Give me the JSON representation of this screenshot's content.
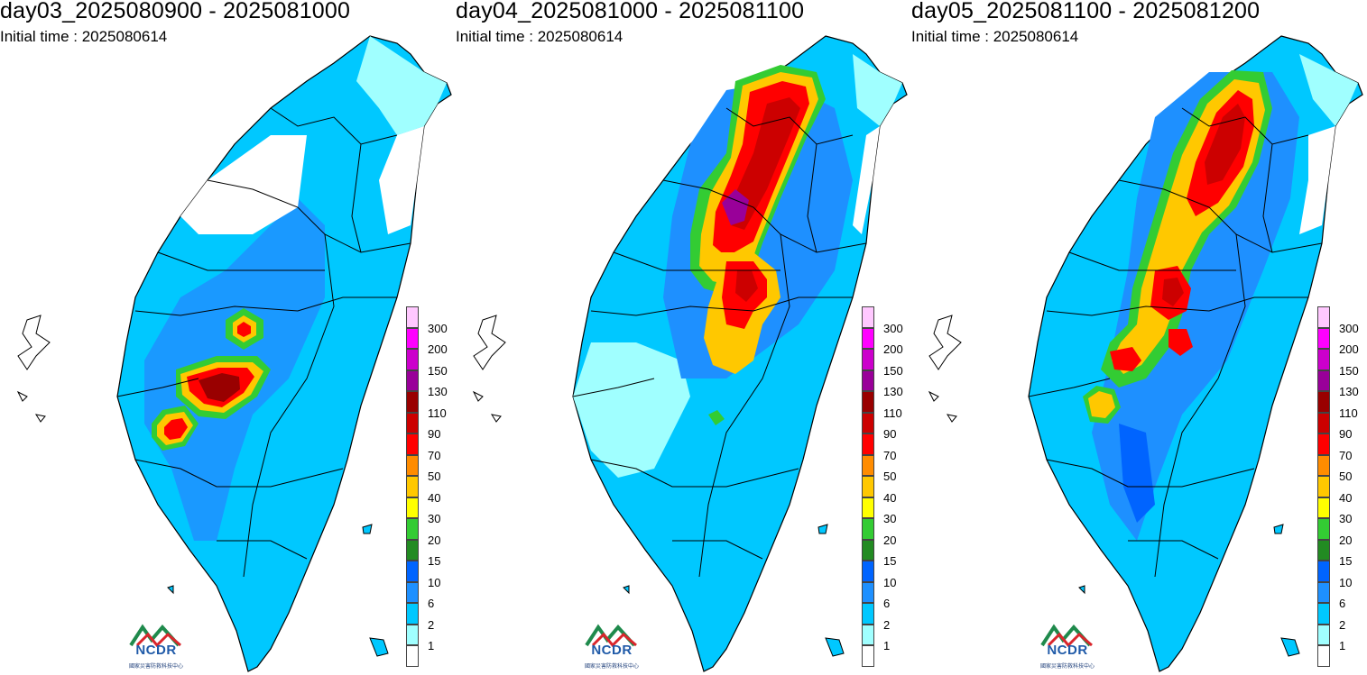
{
  "panels": [
    {
      "title": "day03_2025080900 - 2025081000",
      "subtitle": "Initial time : 2025080614"
    },
    {
      "title": "day04_2025081000 - 2025081100",
      "subtitle": "Initial time : 2025080614"
    },
    {
      "title": "day05_2025081100 - 2025081200",
      "subtitle": "Initial time : 2025080614"
    }
  ],
  "legend": {
    "levels": [
      "300",
      "200",
      "150",
      "130",
      "110",
      "90",
      "70",
      "50",
      "40",
      "30",
      "20",
      "15",
      "10",
      "6",
      "2",
      "1"
    ],
    "colors": [
      "#ffc8ff",
      "#ff00ff",
      "#cc00cc",
      "#990099",
      "#990000",
      "#cc0000",
      "#ff0000",
      "#ff8c00",
      "#ffc800",
      "#ffff00",
      "#33cc33",
      "#228b22",
      "#0064ff",
      "#1e90ff",
      "#00c8ff",
      "#a0ffff",
      "#ffffff"
    ]
  },
  "logo": {
    "word": "NCDR",
    "org": "國家災害防救科技中心"
  }
}
